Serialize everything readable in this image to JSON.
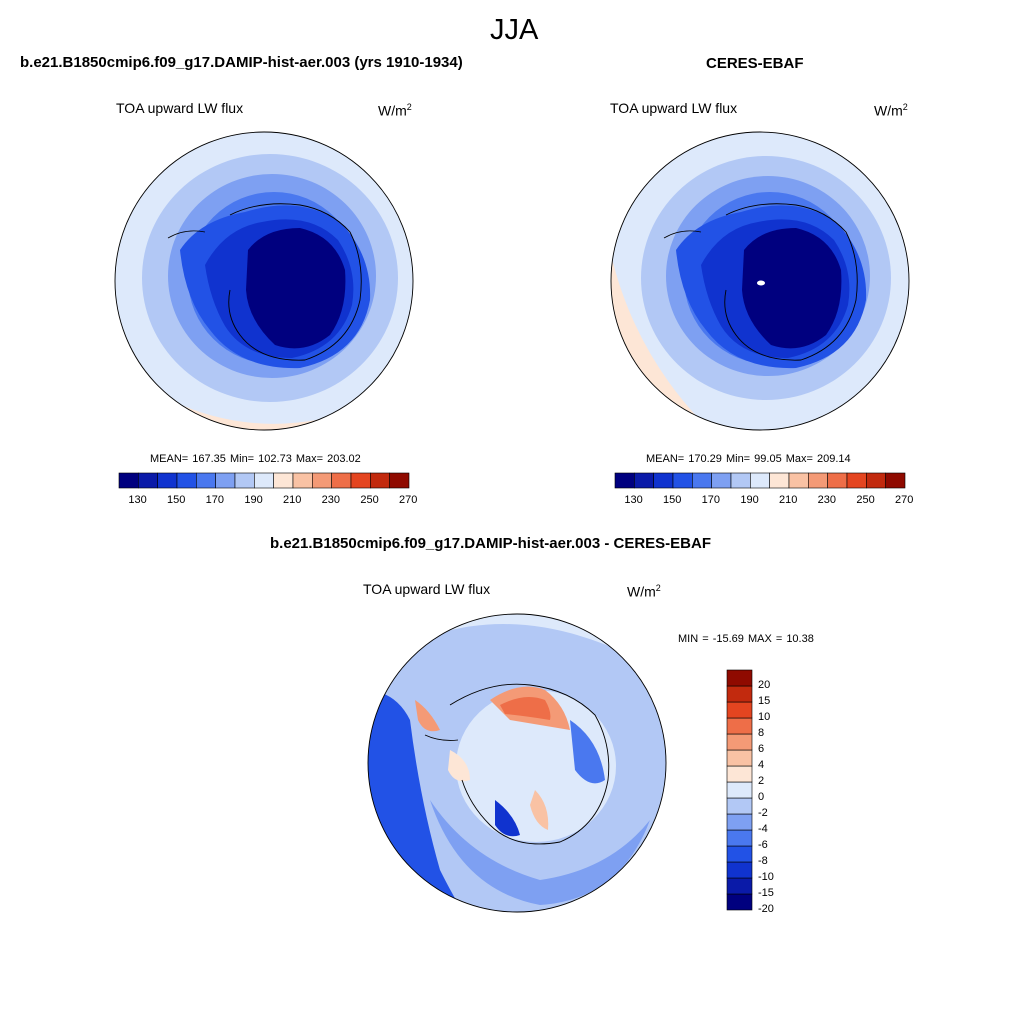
{
  "title": "JJA",
  "panels": [
    {
      "name": "model",
      "title": "b.e21.B1850cmip6.f09_g17.DAMIP-hist-aer.003 (yrs 1910-1934)",
      "variable": "TOA upward LW flux",
      "units_base": "W/m",
      "units_exp": "2",
      "stats": {
        "mean": "167.35",
        "min": "102.73",
        "max": "203.02",
        "text": "MEAN= 167.35  Min= 102.73  Max= 203.02"
      }
    },
    {
      "name": "obs",
      "title": "CERES-EBAF",
      "variable": "TOA upward LW flux",
      "units_base": "W/m",
      "units_exp": "2",
      "stats": {
        "mean": "170.29",
        "min": "99.05",
        "max": "209.14",
        "text": "MEAN= 170.29  Min=  99.05  Max= 209.14"
      }
    },
    {
      "name": "difference",
      "title": "b.e21.B1850cmip6.f09_g17.DAMIP-hist-aer.003 - CERES-EBAF",
      "variable": "TOA upward LW flux",
      "units_base": "W/m",
      "units_exp": "2",
      "stats": {
        "min": "-15.69",
        "max": "10.38",
        "text": "MIN = -15.69 MAX =  10.38"
      }
    }
  ],
  "abs_colorbar": {
    "colors": [
      "#00007f",
      "#0a1aa8",
      "#1033cf",
      "#2252e6",
      "#4a78ef",
      "#7ea0f2",
      "#b2c8f5",
      "#dde9fb",
      "#fde6d6",
      "#f9c2a4",
      "#f49a76",
      "#ee6e48",
      "#e44520",
      "#c22a0e",
      "#8f0a00"
    ],
    "tick_labels": [
      "130",
      "150",
      "170",
      "190",
      "210",
      "230",
      "250",
      "270"
    ]
  },
  "diff_colorbar": {
    "colors": [
      "#00007f",
      "#0a1aa8",
      "#1033cf",
      "#2252e6",
      "#4a78ef",
      "#7ea0f2",
      "#b2c8f5",
      "#dde9fb",
      "#fde6d6",
      "#f9c2a4",
      "#f49a76",
      "#ee6e48",
      "#e44520",
      "#c22a0e",
      "#8f0a00"
    ],
    "tick_labels": [
      "20",
      "15",
      "10",
      "8",
      "6",
      "4",
      "2",
      "0",
      "-2",
      "-4",
      "-6",
      "-8",
      "-10",
      "-15",
      "-20"
    ]
  }
}
